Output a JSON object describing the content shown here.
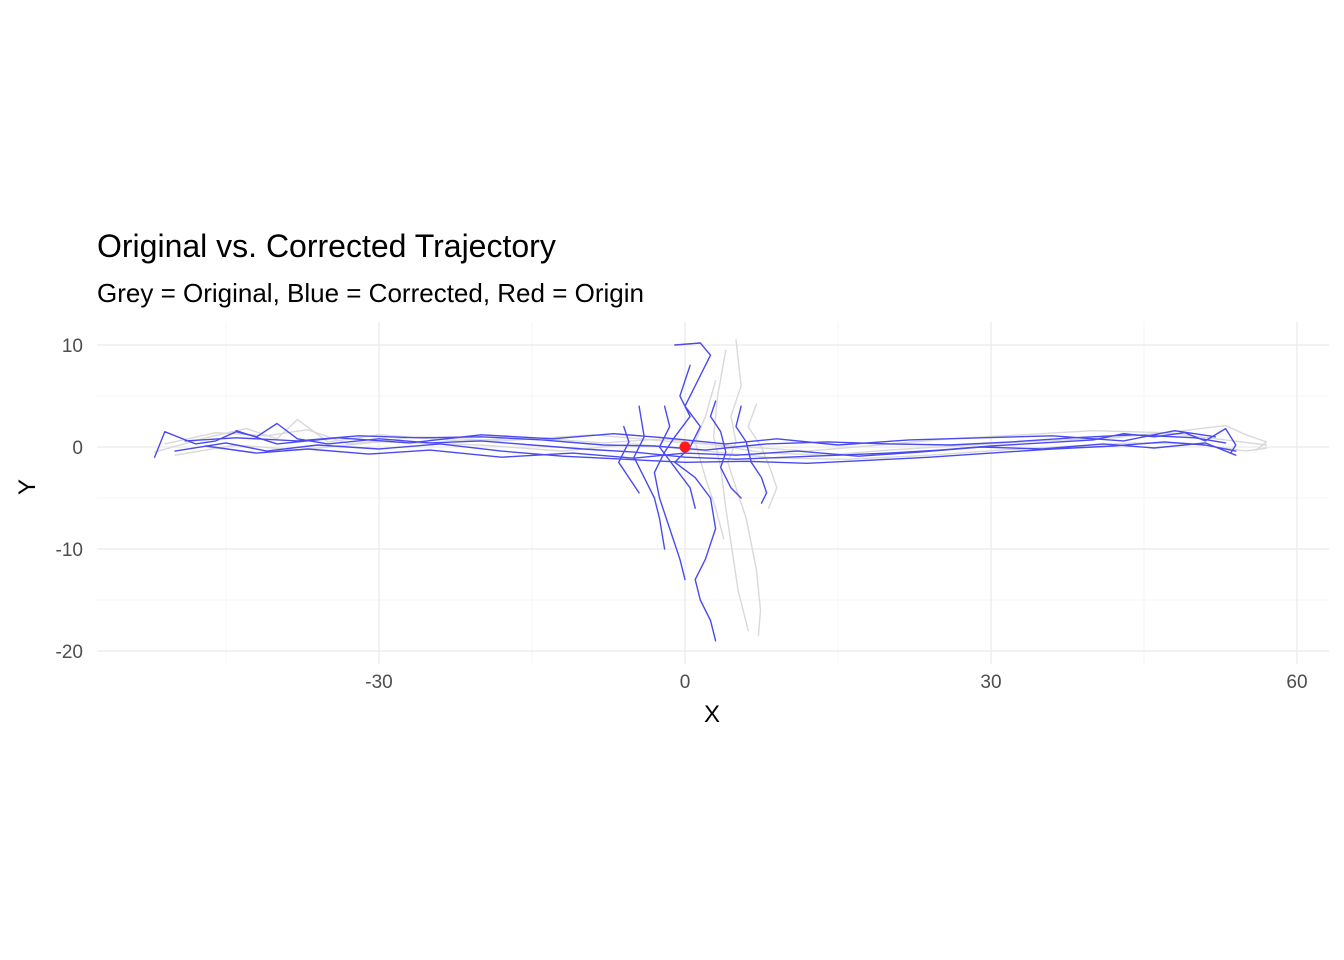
{
  "chart_data": {
    "type": "line",
    "title": "Original vs. Corrected Trajectory",
    "subtitle": "Grey = Original, Blue = Corrected, Red = Origin",
    "xlabel": "X",
    "ylabel": "Y",
    "xlim": [
      -57.5,
      63
    ],
    "ylim": [
      -20.5,
      12.5
    ],
    "x_ticks": [
      -30,
      0,
      30,
      60
    ],
    "y_ticks": [
      -20,
      -10,
      0,
      10
    ],
    "x_minor_grid": [
      -45,
      -15,
      15,
      45
    ],
    "y_minor_grid": [
      -15,
      -5,
      5
    ],
    "grid": true,
    "legend": "none",
    "colors": {
      "original": "#d9d9d9",
      "corrected": "#4a4af0",
      "origin": "#ff1a1a",
      "grid_major": "#ebebeb",
      "grid_minor": "#f5f5f5"
    },
    "series": [
      {
        "key": "original",
        "segments": [
          [
            [
              -52,
              -0.5
            ],
            [
              -47,
              0.9
            ],
            [
              -43,
              1.8
            ],
            [
              -40,
              0.8
            ],
            [
              -38,
              2.7
            ],
            [
              -35,
              0.5
            ],
            [
              -30,
              1.2
            ],
            [
              -22,
              0.6
            ],
            [
              -15,
              0.9
            ],
            [
              -8,
              0.4
            ],
            [
              -2,
              0.8
            ],
            [
              3,
              0.2
            ],
            [
              8,
              -0.6
            ],
            [
              14,
              -0.8
            ],
            [
              20,
              -0.3
            ],
            [
              28,
              0.2
            ],
            [
              35,
              0.6
            ],
            [
              42,
              0.9
            ],
            [
              48,
              1.5
            ],
            [
              53,
              2.1
            ],
            [
              55,
              1.2
            ],
            [
              57,
              0.5
            ],
            [
              56,
              -0.3
            ]
          ],
          [
            [
              -50,
              -0.8
            ],
            [
              -44,
              0.2
            ],
            [
              -38,
              -0.3
            ],
            [
              -30,
              0.5
            ],
            [
              -20,
              0.2
            ],
            [
              -12,
              -0.4
            ],
            [
              -5,
              0.3
            ],
            [
              2,
              -0.4
            ],
            [
              9,
              -1.1
            ],
            [
              16,
              -1.2
            ],
            [
              24,
              -0.8
            ],
            [
              31,
              -0.3
            ],
            [
              38,
              0.1
            ],
            [
              44,
              0.4
            ],
            [
              50,
              0.3
            ],
            [
              55,
              -0.4
            ],
            [
              57,
              -0.1
            ]
          ],
          [
            [
              -51,
              0.3
            ],
            [
              -46,
              1.4
            ],
            [
              -41,
              1.1
            ],
            [
              -37,
              1.7
            ],
            [
              -33,
              0.3
            ],
            [
              -26,
              1.0
            ],
            [
              -18,
              0.6
            ],
            [
              -9,
              1.2
            ],
            [
              -1,
              0.5
            ],
            [
              6,
              0.0
            ],
            [
              12,
              -0.4
            ],
            [
              19,
              0.2
            ],
            [
              26,
              0.8
            ],
            [
              33,
              1.2
            ],
            [
              40,
              1.6
            ],
            [
              47,
              1.4
            ],
            [
              53,
              0.7
            ],
            [
              57,
              0.2
            ]
          ],
          [
            [
              5,
              10.5
            ],
            [
              5.5,
              6
            ],
            [
              4.5,
              3
            ],
            [
              5,
              0.5
            ],
            [
              4.2,
              -1.5
            ],
            [
              5,
              -4
            ],
            [
              6,
              -7
            ],
            [
              7,
              -12
            ],
            [
              7.4,
              -16
            ],
            [
              7.2,
              -18.5
            ]
          ],
          [
            [
              4,
              9.5
            ],
            [
              3.2,
              5
            ],
            [
              2.8,
              1
            ],
            [
              3.5,
              -2
            ],
            [
              4,
              -6
            ],
            [
              4.6,
              -10
            ],
            [
              5.2,
              -14
            ],
            [
              6.2,
              -18
            ]
          ],
          [
            [
              7,
              4.2
            ],
            [
              6.2,
              2
            ],
            [
              7.5,
              0
            ],
            [
              8.5,
              -2.5
            ],
            [
              9,
              -4
            ],
            [
              8.2,
              -6
            ]
          ],
          [
            [
              3,
              6.5
            ],
            [
              2,
              3
            ],
            [
              1,
              0.5
            ],
            [
              2,
              -3
            ],
            [
              3,
              -6
            ],
            [
              3.8,
              -9
            ]
          ]
        ]
      },
      {
        "key": "corrected",
        "segments": [
          [
            [
              -52,
              -1.0
            ],
            [
              -51,
              1.5
            ],
            [
              -48,
              0.3
            ],
            [
              -46,
              0.6
            ],
            [
              -44,
              1.5
            ],
            [
              -42,
              1.0
            ],
            [
              -40,
              2.3
            ],
            [
              -38,
              0.8
            ],
            [
              -35,
              0.3
            ],
            [
              -30,
              0.8
            ],
            [
              -25,
              0.4
            ],
            [
              -20,
              0.6
            ],
            [
              -15,
              0.2
            ],
            [
              -10,
              -0.2
            ],
            [
              -5,
              -0.5
            ],
            [
              0,
              -1.0
            ],
            [
              5,
              -1.2
            ],
            [
              10,
              -1.0
            ],
            [
              15,
              -0.8
            ],
            [
              20,
              -0.6
            ],
            [
              25,
              -0.3
            ],
            [
              30,
              0.1
            ],
            [
              35,
              0.4
            ],
            [
              40,
              0.7
            ],
            [
              43,
              1.3
            ],
            [
              46,
              1.0
            ],
            [
              49,
              1.4
            ],
            [
              51,
              0.6
            ],
            [
              53,
              1.8
            ],
            [
              54,
              0.2
            ],
            [
              53.5,
              -0.6
            ]
          ],
          [
            [
              -50,
              -0.4
            ],
            [
              -45,
              0.4
            ],
            [
              -41,
              -0.4
            ],
            [
              -36,
              0.2
            ],
            [
              -30,
              -0.2
            ],
            [
              -24,
              0.3
            ],
            [
              -18,
              -0.4
            ],
            [
              -12,
              -0.9
            ],
            [
              -6,
              -1.2
            ],
            [
              0,
              -1.5
            ],
            [
              6,
              -1.4
            ],
            [
              12,
              -1.6
            ],
            [
              18,
              -1.3
            ],
            [
              24,
              -1.0
            ],
            [
              30,
              -0.6
            ],
            [
              36,
              -0.2
            ],
            [
              42,
              0.1
            ],
            [
              47,
              0.5
            ],
            [
              51,
              0.2
            ],
            [
              54,
              -0.4
            ]
          ],
          [
            [
              -49,
              0.6
            ],
            [
              -44,
              0.9
            ],
            [
              -38,
              0.6
            ],
            [
              -32,
              1.1
            ],
            [
              -26,
              0.9
            ],
            [
              -20,
              1.0
            ],
            [
              -14,
              0.7
            ],
            [
              -8,
              0.2
            ],
            [
              -3,
              0.1
            ],
            [
              2,
              -0.3
            ],
            [
              8,
              0.3
            ],
            [
              14,
              0.5
            ],
            [
              20,
              0.3
            ],
            [
              26,
              0.2
            ],
            [
              32,
              0.5
            ],
            [
              38,
              0.9
            ],
            [
              44,
              1.2
            ],
            [
              50,
              0.9
            ],
            [
              53,
              0.4
            ]
          ],
          [
            [
              -47,
              0.1
            ],
            [
              -42,
              -0.6
            ],
            [
              -37,
              -0.2
            ],
            [
              -31,
              -0.7
            ],
            [
              -25,
              -0.3
            ],
            [
              -18,
              -1.0
            ],
            [
              -11,
              -0.6
            ],
            [
              -5,
              -1.1
            ],
            [
              0,
              -0.6
            ],
            [
              5,
              -0.8
            ],
            [
              11,
              -0.4
            ],
            [
              17,
              -0.9
            ],
            [
              23,
              -0.5
            ],
            [
              29,
              0.0
            ],
            [
              35,
              -0.2
            ],
            [
              41,
              0.3
            ],
            [
              46,
              -0.1
            ],
            [
              51,
              0.4
            ],
            [
              54,
              -0.8
            ]
          ],
          [
            [
              -44,
              1.6
            ],
            [
              -40,
              0.3
            ],
            [
              -34,
              0.9
            ],
            [
              -27,
              0.4
            ],
            [
              -20,
              1.2
            ],
            [
              -13,
              0.8
            ],
            [
              -7,
              1.3
            ],
            [
              -2,
              0.9
            ],
            [
              4,
              0.3
            ],
            [
              9,
              0.8
            ],
            [
              15,
              0.2
            ],
            [
              22,
              0.7
            ],
            [
              29,
              0.9
            ],
            [
              36,
              1.1
            ],
            [
              43,
              0.6
            ],
            [
              48,
              1.6
            ],
            [
              52,
              1.0
            ]
          ],
          [
            [
              -1,
              10
            ],
            [
              1.5,
              10.2
            ],
            [
              2.5,
              9
            ],
            [
              1,
              6
            ],
            [
              0,
              4
            ],
            [
              1.5,
              2
            ],
            [
              0.5,
              0
            ],
            [
              -1,
              -1.5
            ],
            [
              1,
              -3
            ],
            [
              2.5,
              -5
            ],
            [
              3,
              -8
            ],
            [
              2,
              -11
            ],
            [
              1,
              -13
            ],
            [
              1.5,
              -15
            ],
            [
              2.5,
              -17
            ],
            [
              3,
              -19
            ]
          ],
          [
            [
              0.5,
              8
            ],
            [
              -0.5,
              5
            ],
            [
              0.5,
              3
            ],
            [
              -1,
              1
            ],
            [
              -2,
              -0.5
            ],
            [
              -3,
              -2.5
            ],
            [
              -2.5,
              -5
            ],
            [
              -1.5,
              -8
            ],
            [
              -0.5,
              -11
            ],
            [
              0,
              -13
            ]
          ],
          [
            [
              -4.5,
              4
            ],
            [
              -4,
              1
            ],
            [
              -5,
              -1
            ],
            [
              -4,
              -3
            ],
            [
              -3,
              -5
            ],
            [
              -2.5,
              -7
            ],
            [
              -2,
              -10
            ]
          ],
          [
            [
              -2,
              4
            ],
            [
              -1.5,
              2
            ],
            [
              -2.5,
              0
            ],
            [
              -1,
              -2
            ],
            [
              0.5,
              -4
            ],
            [
              1,
              -6
            ]
          ],
          [
            [
              3,
              4.5
            ],
            [
              2.5,
              3
            ],
            [
              3.5,
              1.5
            ],
            [
              4,
              -0.5
            ],
            [
              3.5,
              -2
            ],
            [
              4.5,
              -4
            ],
            [
              5.5,
              -5
            ]
          ],
          [
            [
              -6,
              2
            ],
            [
              -5.5,
              0.5
            ],
            [
              -6.5,
              -1.5
            ],
            [
              -5.5,
              -3
            ],
            [
              -4.5,
              -4.5
            ]
          ],
          [
            [
              5.5,
              4
            ],
            [
              5,
              2
            ],
            [
              6,
              0.5
            ],
            [
              6.5,
              -1.5
            ],
            [
              7.5,
              -3
            ],
            [
              8,
              -4.5
            ],
            [
              7.5,
              -5.5
            ]
          ]
        ]
      }
    ],
    "points": [
      {
        "key": "origin",
        "x": 0,
        "y": 0
      }
    ]
  }
}
